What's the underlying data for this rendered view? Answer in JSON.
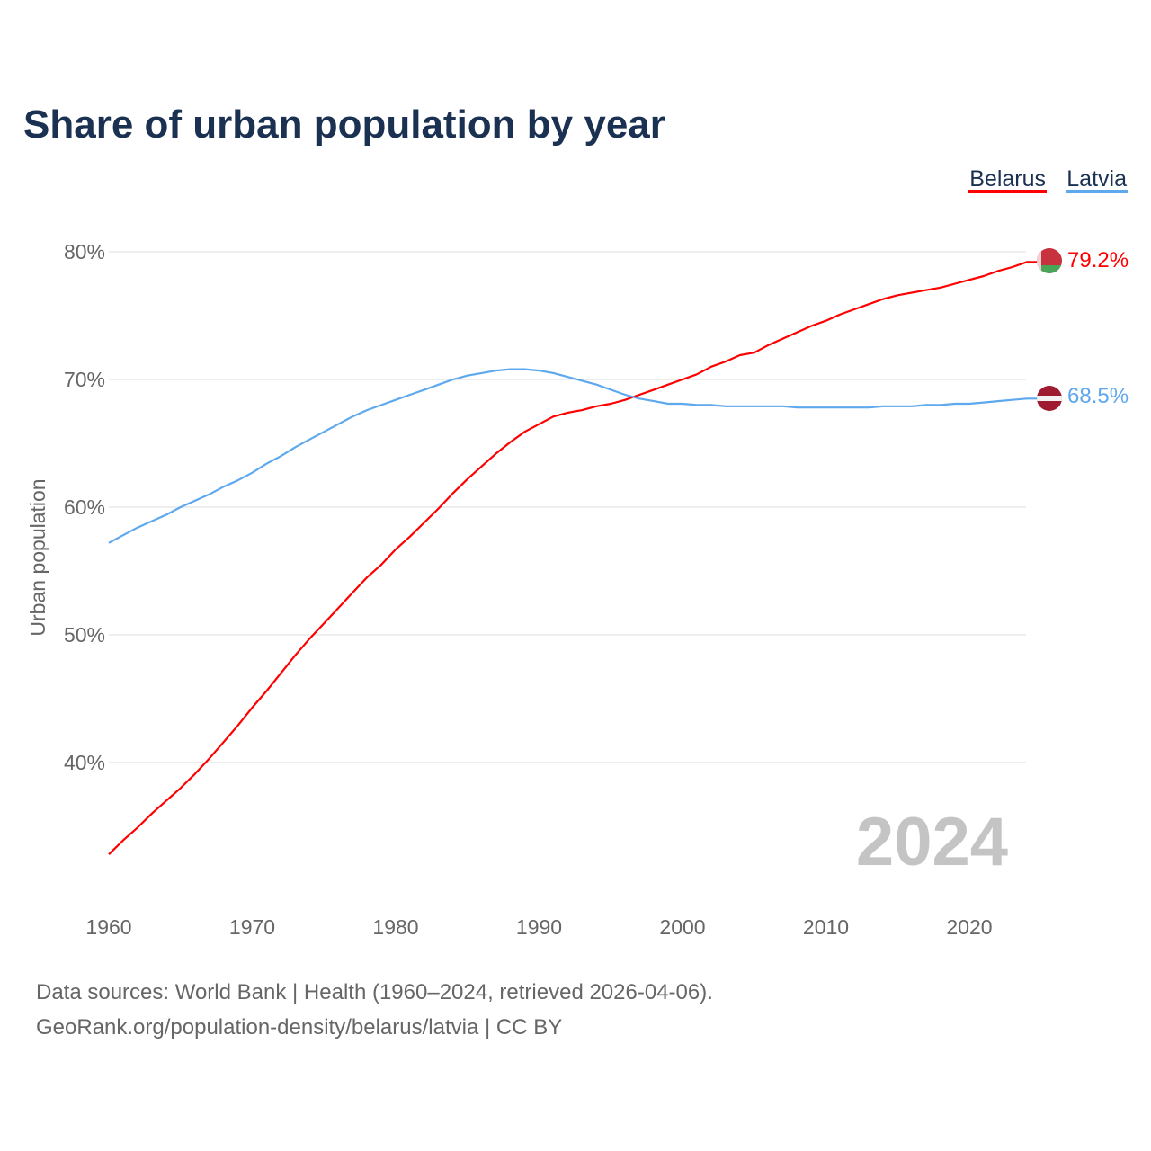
{
  "chart_data": {
    "type": "line",
    "title": "Share of urban population by year",
    "xlabel": "",
    "ylabel": "Urban population",
    "xlim": [
      1960,
      2024
    ],
    "ylim": [
      30,
      83
    ],
    "yticks": [
      40,
      50,
      60,
      70,
      80
    ],
    "ytick_labels": [
      "40%",
      "50%",
      "60%",
      "70%",
      "80%"
    ],
    "xticks": [
      1960,
      1970,
      1980,
      1990,
      2000,
      2010,
      2020
    ],
    "xtick_labels": [
      "1960",
      "1970",
      "1980",
      "1990",
      "2000",
      "2010",
      "2020"
    ],
    "grid": true,
    "legend_position": "top-right",
    "year_watermark": "2024",
    "x_start": 1960,
    "series": [
      {
        "name": "Belarus",
        "color": "#ff0000",
        "end_label": "79.2%",
        "values": [
          32.8,
          33.9,
          34.9,
          36.0,
          37.0,
          38.0,
          39.1,
          40.3,
          41.6,
          42.9,
          44.3,
          45.6,
          47.0,
          48.4,
          49.7,
          50.9,
          52.1,
          53.3,
          54.5,
          55.5,
          56.7,
          57.7,
          58.8,
          59.9,
          61.1,
          62.2,
          63.2,
          64.2,
          65.1,
          65.9,
          66.5,
          67.1,
          67.4,
          67.6,
          67.9,
          68.1,
          68.4,
          68.8,
          69.2,
          69.6,
          70.0,
          70.4,
          71.0,
          71.4,
          71.9,
          72.1,
          72.7,
          73.2,
          73.7,
          74.2,
          74.6,
          75.1,
          75.5,
          75.9,
          76.3,
          76.6,
          76.8,
          77.0,
          77.2,
          77.5,
          77.8,
          78.1,
          78.5,
          78.8,
          79.2
        ]
      },
      {
        "name": "Latvia",
        "color": "#5ea8ee",
        "end_label": "68.5%",
        "values": [
          57.2,
          57.8,
          58.4,
          58.9,
          59.4,
          60.0,
          60.5,
          61.0,
          61.6,
          62.1,
          62.7,
          63.4,
          64.0,
          64.7,
          65.3,
          65.9,
          66.5,
          67.1,
          67.6,
          68.0,
          68.4,
          68.8,
          69.2,
          69.6,
          70.0,
          70.3,
          70.5,
          70.7,
          70.8,
          70.8,
          70.7,
          70.5,
          70.2,
          69.9,
          69.6,
          69.2,
          68.8,
          68.5,
          68.3,
          68.1,
          68.1,
          68.0,
          68.0,
          67.9,
          67.9,
          67.9,
          67.9,
          67.9,
          67.8,
          67.8,
          67.8,
          67.8,
          67.8,
          67.8,
          67.9,
          67.9,
          67.9,
          68.0,
          68.0,
          68.1,
          68.1,
          68.2,
          68.3,
          68.4,
          68.5
        ]
      }
    ]
  },
  "footer": {
    "line1": "Data sources: World Bank | Health (1960–2024, retrieved 2026-04-06).",
    "line2": "GeoRank.org/population-density/belarus/latvia | CC BY"
  }
}
